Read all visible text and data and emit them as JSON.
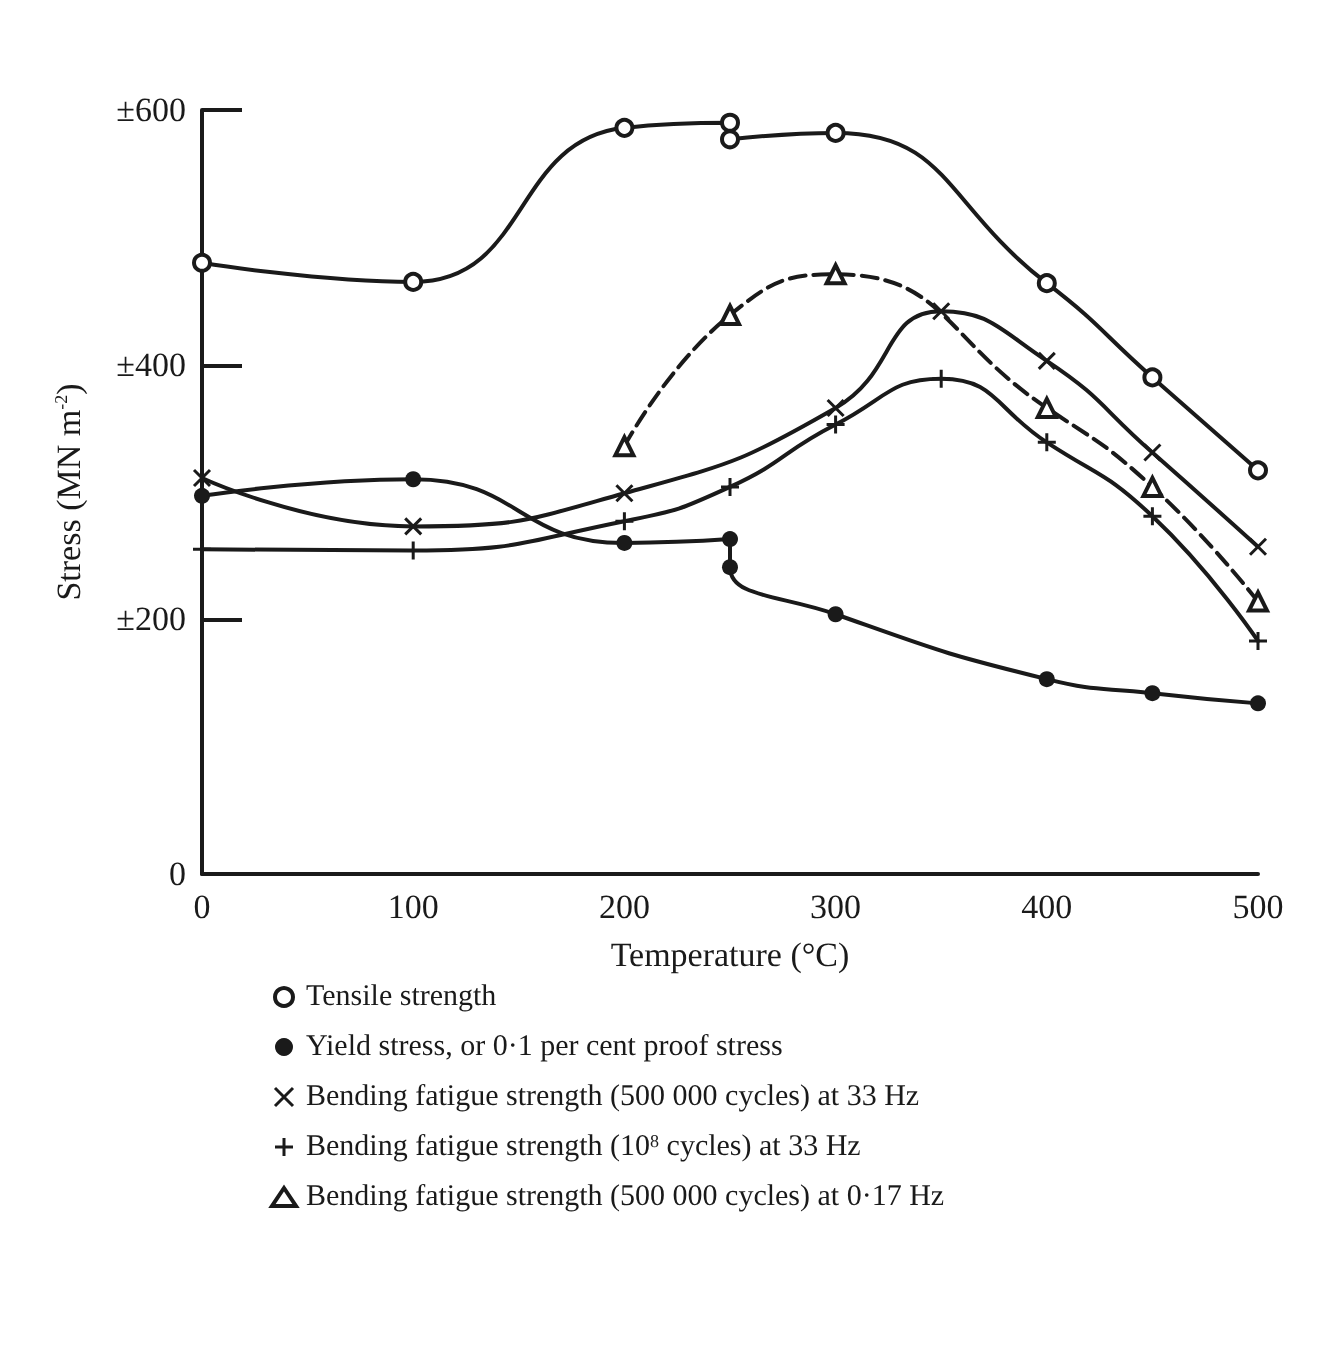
{
  "chart_data": {
    "type": "line",
    "xlabel": "Temperature (°C)",
    "ylabel": "Stress (MN m$^{-2}$)",
    "xlim": [
      0,
      500
    ],
    "xticks": [
      0,
      100,
      200,
      300,
      400,
      500
    ],
    "ylim": [
      0,
      600
    ],
    "yticks": [
      0,
      {
        "value": 200,
        "label": "±200"
      },
      {
        "value": 400,
        "label": "±400"
      },
      {
        "value": 600,
        "label": "±600"
      }
    ],
    "grid": false,
    "legend": "bottom",
    "series": [
      {
        "name": "Tensile strength",
        "color": "#1a1a1a",
        "marker": "open_circle",
        "line_style": "solid",
        "x": [
          0,
          100,
          200,
          250,
          250,
          300,
          400,
          450,
          500
        ],
        "values": [
          480,
          465,
          586,
          590,
          577,
          582,
          464,
          390,
          317
        ]
      },
      {
        "name": "Yield stress, or 0·1 per cent proof stress",
        "color": "#1a1a1a",
        "marker": "circle",
        "line_style": "solid",
        "x": [
          0,
          100,
          200,
          250,
          250,
          300,
          400,
          450,
          500
        ],
        "values": [
          297,
          310,
          260,
          263,
          241,
          204,
          153,
          142,
          134
        ]
      },
      {
        "name": "Bending fatigue strength (500 000 cycles) at 33 Hz",
        "color": "#1a1a1a",
        "marker": "x",
        "line_style": "solid",
        "x": [
          0,
          100,
          200,
          300,
          350,
          400,
          450,
          500
        ],
        "values": [
          311,
          273,
          299,
          366,
          442,
          403,
          331,
          257
        ]
      },
      {
        "name": "Bending fatigue strength (10$^{8}$ cycles) at 33 Hz",
        "color": "#1a1a1a",
        "marker": "plus",
        "line_style": "solid",
        "x": [
          0,
          100,
          200,
          250,
          300,
          350,
          400,
          450,
          500
        ],
        "values": [
          255,
          254,
          277,
          304,
          353,
          389,
          339,
          281,
          183
        ]
      },
      {
        "name": "Bending fatigue strength (500 000 cycles) at 0·17 Hz",
        "color": "#1a1a1a",
        "marker": "triangle",
        "line_style": "dashed",
        "x": [
          200,
          250,
          300,
          400,
          450,
          500
        ],
        "values": [
          336,
          439,
          471,
          366,
          304,
          214
        ]
      }
    ]
  }
}
